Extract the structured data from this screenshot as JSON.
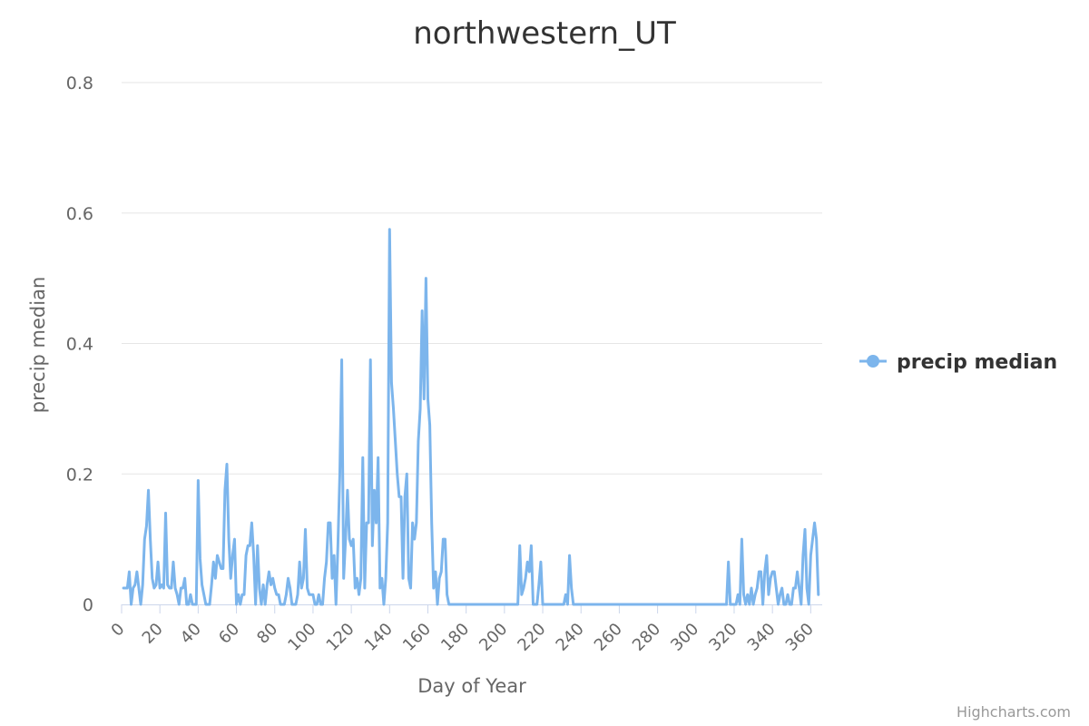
{
  "chart_data": {
    "type": "line",
    "title": "northwestern_UT",
    "xlabel": "Day of Year",
    "ylabel": "precip median",
    "xlim": [
      0,
      366
    ],
    "ylim": [
      0,
      0.8
    ],
    "x_ticks": [
      0,
      20,
      40,
      60,
      80,
      100,
      120,
      140,
      160,
      180,
      200,
      220,
      240,
      260,
      280,
      300,
      320,
      340,
      360
    ],
    "y_ticks": [
      0,
      0.2,
      0.4,
      0.6,
      0.8
    ],
    "y_tick_labels": [
      "0",
      "0.2",
      "0.4",
      "0.6",
      "0.8"
    ],
    "grid": true,
    "legend_position": "right",
    "series": [
      {
        "name": "precip median",
        "color": "#7cb5ec",
        "points": [
          [
            1,
            0.025
          ],
          [
            2,
            0.025
          ],
          [
            3,
            0.025
          ],
          [
            4,
            0.05
          ],
          [
            5,
            0.0
          ],
          [
            6,
            0.025
          ],
          [
            7,
            0.03
          ],
          [
            8,
            0.05
          ],
          [
            9,
            0.025
          ],
          [
            10,
            0.0
          ],
          [
            11,
            0.03
          ],
          [
            12,
            0.1
          ],
          [
            13,
            0.12
          ],
          [
            14,
            0.175
          ],
          [
            15,
            0.1
          ],
          [
            16,
            0.04
          ],
          [
            17,
            0.025
          ],
          [
            18,
            0.03
          ],
          [
            19,
            0.065
          ],
          [
            20,
            0.025
          ],
          [
            21,
            0.03
          ],
          [
            22,
            0.025
          ],
          [
            23,
            0.14
          ],
          [
            24,
            0.03
          ],
          [
            25,
            0.025
          ],
          [
            26,
            0.025
          ],
          [
            27,
            0.065
          ],
          [
            28,
            0.025
          ],
          [
            29,
            0.015
          ],
          [
            30,
            0.0
          ],
          [
            31,
            0.025
          ],
          [
            32,
            0.025
          ],
          [
            33,
            0.04
          ],
          [
            34,
            0.0
          ],
          [
            35,
            0.0
          ],
          [
            36,
            0.015
          ],
          [
            37,
            0.0
          ],
          [
            38,
            0.0
          ],
          [
            39,
            0.0
          ],
          [
            40,
            0.19
          ],
          [
            41,
            0.07
          ],
          [
            42,
            0.03
          ],
          [
            43,
            0.015
          ],
          [
            44,
            0.0
          ],
          [
            45,
            0.0
          ],
          [
            46,
            0.0
          ],
          [
            47,
            0.03
          ],
          [
            48,
            0.065
          ],
          [
            49,
            0.04
          ],
          [
            50,
            0.075
          ],
          [
            51,
            0.065
          ],
          [
            52,
            0.055
          ],
          [
            53,
            0.055
          ],
          [
            54,
            0.175
          ],
          [
            55,
            0.215
          ],
          [
            56,
            0.1
          ],
          [
            57,
            0.04
          ],
          [
            58,
            0.075
          ],
          [
            59,
            0.1
          ],
          [
            60,
            0.0
          ],
          [
            61,
            0.015
          ],
          [
            62,
            0.0
          ],
          [
            63,
            0.015
          ],
          [
            64,
            0.015
          ],
          [
            65,
            0.075
          ],
          [
            66,
            0.09
          ],
          [
            67,
            0.09
          ],
          [
            68,
            0.125
          ],
          [
            69,
            0.075
          ],
          [
            70,
            0.0
          ],
          [
            71,
            0.09
          ],
          [
            72,
            0.025
          ],
          [
            73,
            0.0
          ],
          [
            74,
            0.03
          ],
          [
            75,
            0.0
          ],
          [
            76,
            0.03
          ],
          [
            77,
            0.05
          ],
          [
            78,
            0.03
          ],
          [
            79,
            0.04
          ],
          [
            80,
            0.025
          ],
          [
            81,
            0.015
          ],
          [
            82,
            0.015
          ],
          [
            83,
            0.0
          ],
          [
            84,
            0.0
          ],
          [
            85,
            0.0
          ],
          [
            86,
            0.015
          ],
          [
            87,
            0.04
          ],
          [
            88,
            0.025
          ],
          [
            89,
            0.0
          ],
          [
            90,
            0.0
          ],
          [
            91,
            0.0
          ],
          [
            92,
            0.015
          ],
          [
            93,
            0.065
          ],
          [
            94,
            0.025
          ],
          [
            95,
            0.04
          ],
          [
            96,
            0.115
          ],
          [
            97,
            0.025
          ],
          [
            98,
            0.015
          ],
          [
            99,
            0.015
          ],
          [
            100,
            0.015
          ],
          [
            101,
            0.0
          ],
          [
            102,
            0.0
          ],
          [
            103,
            0.015
          ],
          [
            104,
            0.0
          ],
          [
            105,
            0.0
          ],
          [
            106,
            0.04
          ],
          [
            107,
            0.065
          ],
          [
            108,
            0.125
          ],
          [
            109,
            0.125
          ],
          [
            110,
            0.04
          ],
          [
            111,
            0.075
          ],
          [
            112,
            0.0
          ],
          [
            113,
            0.09
          ],
          [
            114,
            0.2
          ],
          [
            115,
            0.375
          ],
          [
            116,
            0.04
          ],
          [
            117,
            0.1
          ],
          [
            118,
            0.175
          ],
          [
            119,
            0.1
          ],
          [
            120,
            0.09
          ],
          [
            121,
            0.1
          ],
          [
            122,
            0.025
          ],
          [
            123,
            0.04
          ],
          [
            124,
            0.015
          ],
          [
            125,
            0.04
          ],
          [
            126,
            0.225
          ],
          [
            127,
            0.025
          ],
          [
            128,
            0.125
          ],
          [
            129,
            0.125
          ],
          [
            130,
            0.375
          ],
          [
            131,
            0.09
          ],
          [
            132,
            0.175
          ],
          [
            133,
            0.125
          ],
          [
            134,
            0.225
          ],
          [
            135,
            0.025
          ],
          [
            136,
            0.04
          ],
          [
            137,
            0.0
          ],
          [
            138,
            0.04
          ],
          [
            139,
            0.125
          ],
          [
            140,
            0.575
          ],
          [
            141,
            0.34
          ],
          [
            142,
            0.3
          ],
          [
            143,
            0.25
          ],
          [
            144,
            0.2
          ],
          [
            145,
            0.165
          ],
          [
            146,
            0.165
          ],
          [
            147,
            0.04
          ],
          [
            148,
            0.165
          ],
          [
            149,
            0.2
          ],
          [
            150,
            0.04
          ],
          [
            151,
            0.025
          ],
          [
            152,
            0.125
          ],
          [
            153,
            0.1
          ],
          [
            154,
            0.125
          ],
          [
            155,
            0.25
          ],
          [
            156,
            0.3
          ],
          [
            157,
            0.45
          ],
          [
            158,
            0.315
          ],
          [
            159,
            0.5
          ],
          [
            160,
            0.315
          ],
          [
            161,
            0.275
          ],
          [
            162,
            0.125
          ],
          [
            163,
            0.025
          ],
          [
            164,
            0.05
          ],
          [
            165,
            0.0
          ],
          [
            166,
            0.04
          ],
          [
            167,
            0.05
          ],
          [
            168,
            0.1
          ],
          [
            169,
            0.1
          ],
          [
            170,
            0.015
          ],
          [
            171,
            0.0
          ],
          [
            172,
            0.0
          ],
          [
            173,
            0.0
          ],
          [
            174,
            0.0
          ],
          [
            175,
            0.0
          ],
          [
            176,
            0.0
          ],
          [
            177,
            0.0
          ],
          [
            178,
            0.0
          ],
          [
            179,
            0.0
          ],
          [
            180,
            0.0
          ],
          [
            190,
            0.0
          ],
          [
            200,
            0.0
          ],
          [
            206,
            0.0
          ],
          [
            207,
            0.0
          ],
          [
            208,
            0.09
          ],
          [
            209,
            0.015
          ],
          [
            210,
            0.025
          ],
          [
            211,
            0.04
          ],
          [
            212,
            0.065
          ],
          [
            213,
            0.05
          ],
          [
            214,
            0.09
          ],
          [
            215,
            0.0
          ],
          [
            216,
            0.0
          ],
          [
            217,
            0.0
          ],
          [
            218,
            0.03
          ],
          [
            219,
            0.065
          ],
          [
            220,
            0.0
          ],
          [
            221,
            0.0
          ],
          [
            225,
            0.0
          ],
          [
            230,
            0.0
          ],
          [
            231,
            0.0
          ],
          [
            232,
            0.015
          ],
          [
            233,
            0.0
          ],
          [
            234,
            0.075
          ],
          [
            235,
            0.025
          ],
          [
            236,
            0.0
          ],
          [
            237,
            0.0
          ],
          [
            250,
            0.0
          ],
          [
            270,
            0.0
          ],
          [
            290,
            0.0
          ],
          [
            310,
            0.0
          ],
          [
            316,
            0.0
          ],
          [
            317,
            0.065
          ],
          [
            318,
            0.0
          ],
          [
            319,
            0.0
          ],
          [
            320,
            0.0
          ],
          [
            321,
            0.0
          ],
          [
            322,
            0.015
          ],
          [
            323,
            0.0
          ],
          [
            324,
            0.1
          ],
          [
            325,
            0.015
          ],
          [
            326,
            0.0
          ],
          [
            327,
            0.015
          ],
          [
            328,
            0.0
          ],
          [
            329,
            0.025
          ],
          [
            330,
            0.0
          ],
          [
            331,
            0.015
          ],
          [
            332,
            0.025
          ],
          [
            333,
            0.05
          ],
          [
            334,
            0.05
          ],
          [
            335,
            0.0
          ],
          [
            336,
            0.05
          ],
          [
            337,
            0.075
          ],
          [
            338,
            0.015
          ],
          [
            339,
            0.04
          ],
          [
            340,
            0.05
          ],
          [
            341,
            0.05
          ],
          [
            342,
            0.025
          ],
          [
            343,
            0.0
          ],
          [
            344,
            0.015
          ],
          [
            345,
            0.025
          ],
          [
            346,
            0.0
          ],
          [
            347,
            0.0
          ],
          [
            348,
            0.015
          ],
          [
            349,
            0.0
          ],
          [
            350,
            0.0
          ],
          [
            351,
            0.025
          ],
          [
            352,
            0.025
          ],
          [
            353,
            0.05
          ],
          [
            354,
            0.025
          ],
          [
            355,
            0.0
          ],
          [
            356,
            0.075
          ],
          [
            357,
            0.115
          ],
          [
            358,
            0.025
          ],
          [
            359,
            0.0
          ],
          [
            360,
            0.075
          ],
          [
            361,
            0.1
          ],
          [
            362,
            0.125
          ],
          [
            363,
            0.1
          ],
          [
            364,
            0.015
          ]
        ]
      }
    ]
  },
  "credits": "Highcharts.com"
}
